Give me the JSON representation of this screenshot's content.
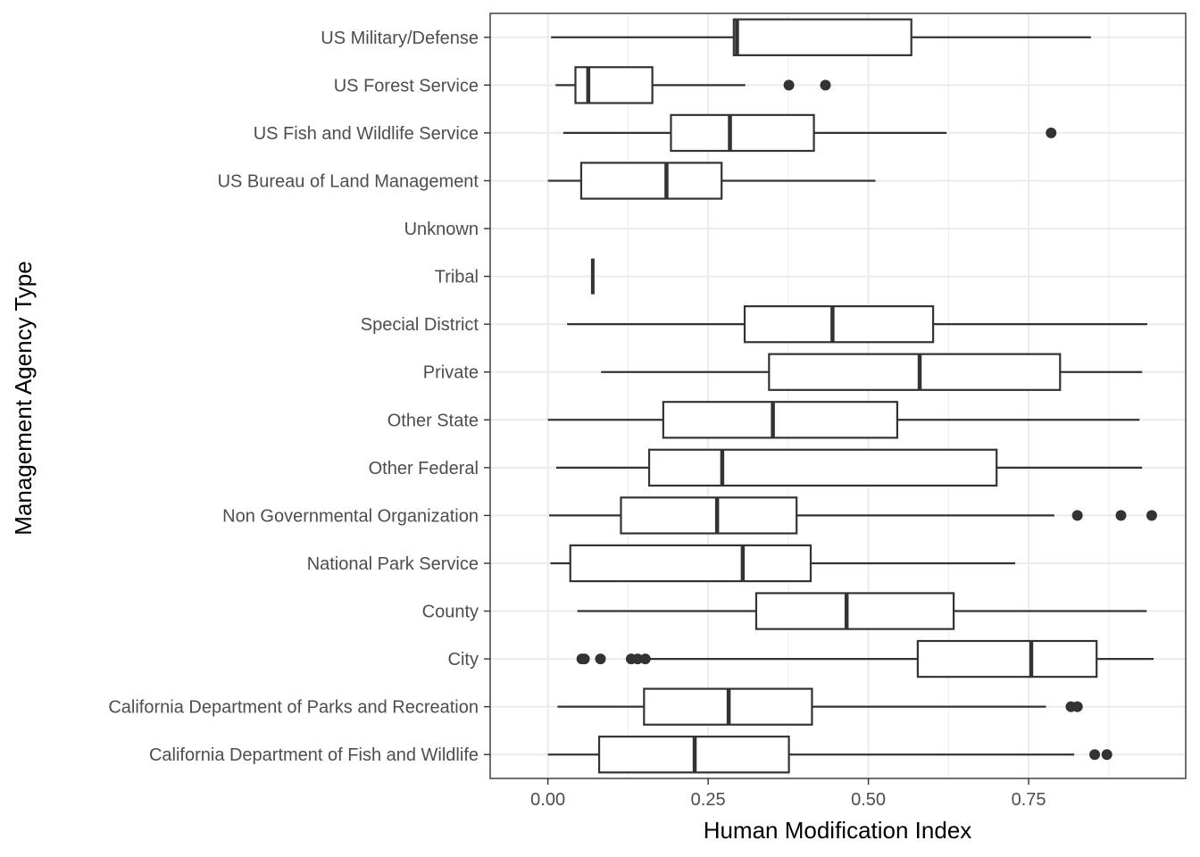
{
  "chart_data": {
    "type": "boxplot",
    "orientation": "horizontal",
    "xlabel": "Human Modification Index",
    "ylabel": "Management Agency Type",
    "xlim": [
      -0.09,
      0.995
    ],
    "x_ticks": [
      0,
      0.25,
      0.5,
      0.75
    ],
    "x_tick_labels": [
      "0.00",
      "0.25",
      "0.50",
      "0.75"
    ],
    "grid": true,
    "colors": {
      "box": "#333333",
      "grid": "#ebebeb",
      "panel_border": "#333333",
      "background": "#ffffff"
    },
    "categories": [
      "US Military/Defense",
      "US Forest Service",
      "US Fish and Wildlife Service",
      "US Bureau of Land Management",
      "Unknown",
      "Tribal",
      "Special District",
      "Private",
      "Other State",
      "Other Federal",
      "Non Governmental Organization",
      "National Park Service",
      "County",
      "City",
      "California Department of Parks and Recreation",
      "California Department of Fish and Wildlife"
    ],
    "boxes": [
      {
        "min": 0.005,
        "q1": 0.29,
        "median": 0.295,
        "q3": 0.567,
        "max": 0.847,
        "outliers": []
      },
      {
        "min": 0.012,
        "q1": 0.043,
        "median": 0.063,
        "q3": 0.163,
        "max": 0.308,
        "outliers": [
          0.376,
          0.433
        ]
      },
      {
        "min": 0.024,
        "q1": 0.192,
        "median": 0.284,
        "q3": 0.415,
        "max": 0.622,
        "outliers": [
          0.785
        ]
      },
      {
        "min": 0.0,
        "q1": 0.052,
        "median": 0.185,
        "q3": 0.271,
        "max": 0.511,
        "outliers": []
      },
      {
        "min": null,
        "q1": null,
        "median": null,
        "q3": null,
        "max": null,
        "outliers": []
      },
      {
        "min": 0.07,
        "q1": 0.07,
        "median": 0.07,
        "q3": 0.07,
        "max": 0.07,
        "outliers": []
      },
      {
        "min": 0.03,
        "q1": 0.307,
        "median": 0.444,
        "q3": 0.601,
        "max": 0.935,
        "outliers": []
      },
      {
        "min": 0.083,
        "q1": 0.345,
        "median": 0.58,
        "q3": 0.799,
        "max": 0.927,
        "outliers": []
      },
      {
        "min": 0.0,
        "q1": 0.18,
        "median": 0.351,
        "q3": 0.545,
        "max": 0.923,
        "outliers": []
      },
      {
        "min": 0.013,
        "q1": 0.158,
        "median": 0.272,
        "q3": 0.7,
        "max": 0.927,
        "outliers": []
      },
      {
        "min": 0.002,
        "q1": 0.114,
        "median": 0.264,
        "q3": 0.388,
        "max": 0.79,
        "outliers": [
          0.826,
          0.894,
          0.942
        ]
      },
      {
        "min": 0.004,
        "q1": 0.035,
        "median": 0.304,
        "q3": 0.41,
        "max": 0.729,
        "outliers": []
      },
      {
        "min": 0.046,
        "q1": 0.325,
        "median": 0.466,
        "q3": 0.633,
        "max": 0.934,
        "outliers": []
      },
      {
        "min": 0.155,
        "q1": 0.577,
        "median": 0.754,
        "q3": 0.856,
        "max": 0.945,
        "outliers": [
          0.053,
          0.057,
          0.082,
          0.13,
          0.14,
          0.152
        ]
      },
      {
        "min": 0.015,
        "q1": 0.15,
        "median": 0.282,
        "q3": 0.412,
        "max": 0.777,
        "outliers": [
          0.816,
          0.826
        ]
      },
      {
        "min": 0.0,
        "q1": 0.08,
        "median": 0.229,
        "q3": 0.376,
        "max": 0.821,
        "outliers": [
          0.853,
          0.872
        ]
      }
    ]
  }
}
